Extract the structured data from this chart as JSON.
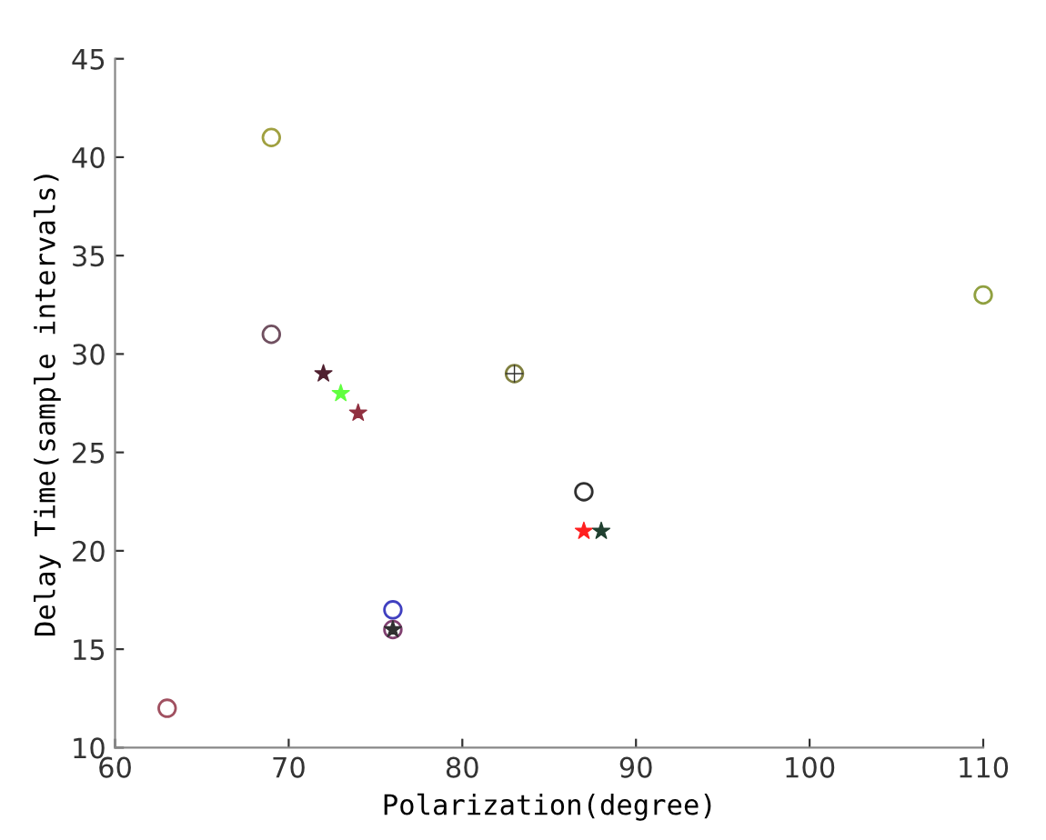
{
  "chart_data": {
    "type": "scatter",
    "xlabel": "Polarization(degree)",
    "ylabel": "Delay Time(sample intervals)",
    "xlim": [
      60,
      110
    ],
    "xticks": [
      60,
      70,
      80,
      90,
      100,
      110
    ],
    "ylim": [
      10,
      45
    ],
    "yticks": [
      10,
      15,
      20,
      25,
      30,
      35,
      40,
      45
    ],
    "grid": false,
    "legend": false,
    "series": [
      {
        "marker": "circle",
        "x": [
          69,
          69,
          83,
          87,
          76,
          76,
          63,
          110
        ],
        "values": [
          41,
          31,
          29,
          23,
          17,
          16,
          12,
          33
        ],
        "colors": [
          "#a0a040",
          "#705060",
          "#808040",
          "#303030",
          "#4040c0",
          "#804070",
          "#a05060",
          "#90a040"
        ]
      },
      {
        "marker": "star",
        "x": [
          72,
          73,
          74,
          87,
          88,
          76
        ],
        "values": [
          29,
          28,
          27,
          21,
          21,
          16
        ],
        "colors": [
          "#502030",
          "#60ff40",
          "#903040",
          "#ff2020",
          "#204030",
          "#303030"
        ]
      },
      {
        "marker": "cross",
        "x": [
          83
        ],
        "values": [
          29
        ],
        "colors": [
          "#303030"
        ]
      }
    ]
  }
}
